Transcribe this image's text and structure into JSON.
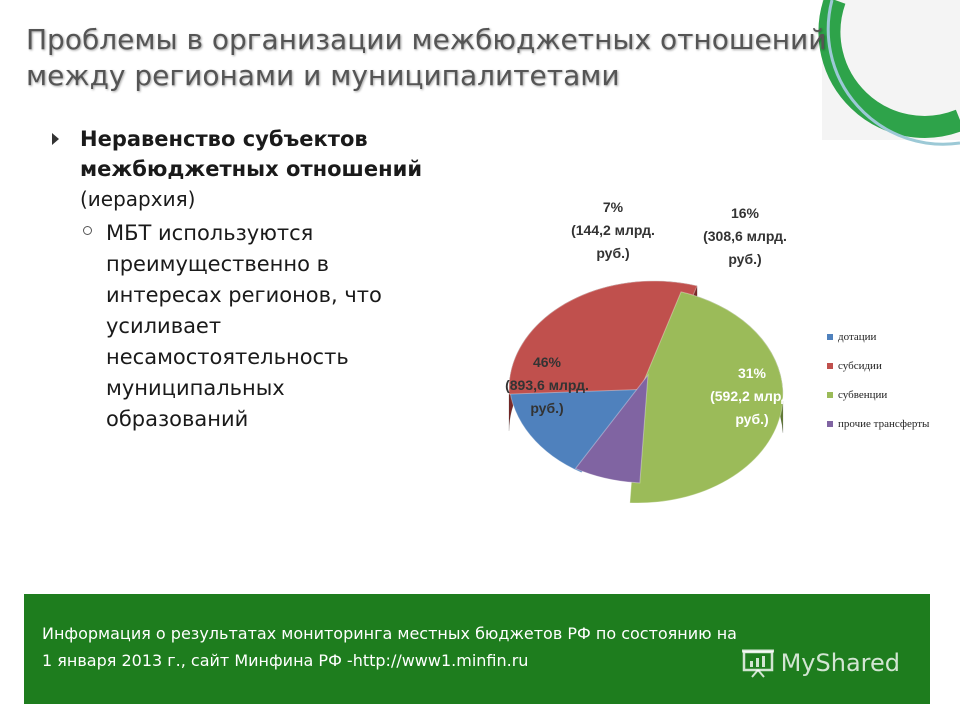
{
  "title": {
    "line1": "Проблемы в организации межбюджетных отношений",
    "line2": "между регионами и муниципалитетами"
  },
  "bullet": {
    "heading_line1": "Неравенство  субъектов",
    "heading_line2": "межбюджетных отношений",
    "heading_note": "(иерархия)",
    "sub": [
      "МБТ используются",
      "преимущественно в",
      "интересах регионов, что",
      "усиливает",
      "несамостоятельность",
      "муниципальных",
      "образований"
    ]
  },
  "chart_data": {
    "type": "pie",
    "three_d": true,
    "categories": [
      "дотации",
      "субсидии",
      "субвенции",
      "прочие трансферты"
    ],
    "values": [
      308.6,
      592.2,
      893.6,
      144.2
    ],
    "percent_labels": [
      "16%",
      "31%",
      "46%",
      "7%"
    ],
    "amount_labels": [
      "(308,6 млрд.",
      "(592,2 млрд.",
      "(893,6 млрд.",
      "(144,2 млрд."
    ],
    "unit_label": "руб.)",
    "colors": [
      "#4f81bd",
      "#c0504d",
      "#9bbb59",
      "#8064a2"
    ],
    "dark_colors": [
      "#2c4d74",
      "#7a2a28",
      "#5e7a2e",
      "#4b3a66"
    ],
    "legend_position": "right"
  },
  "footer": {
    "line1": "Информация о результатах мониторинга  местных бюджетов РФ по состоянию на",
    "line2": "1 января 2013 г., сайт Минфина РФ -http://www1.minfin.ru"
  },
  "watermark": {
    "text": "MyShared"
  }
}
